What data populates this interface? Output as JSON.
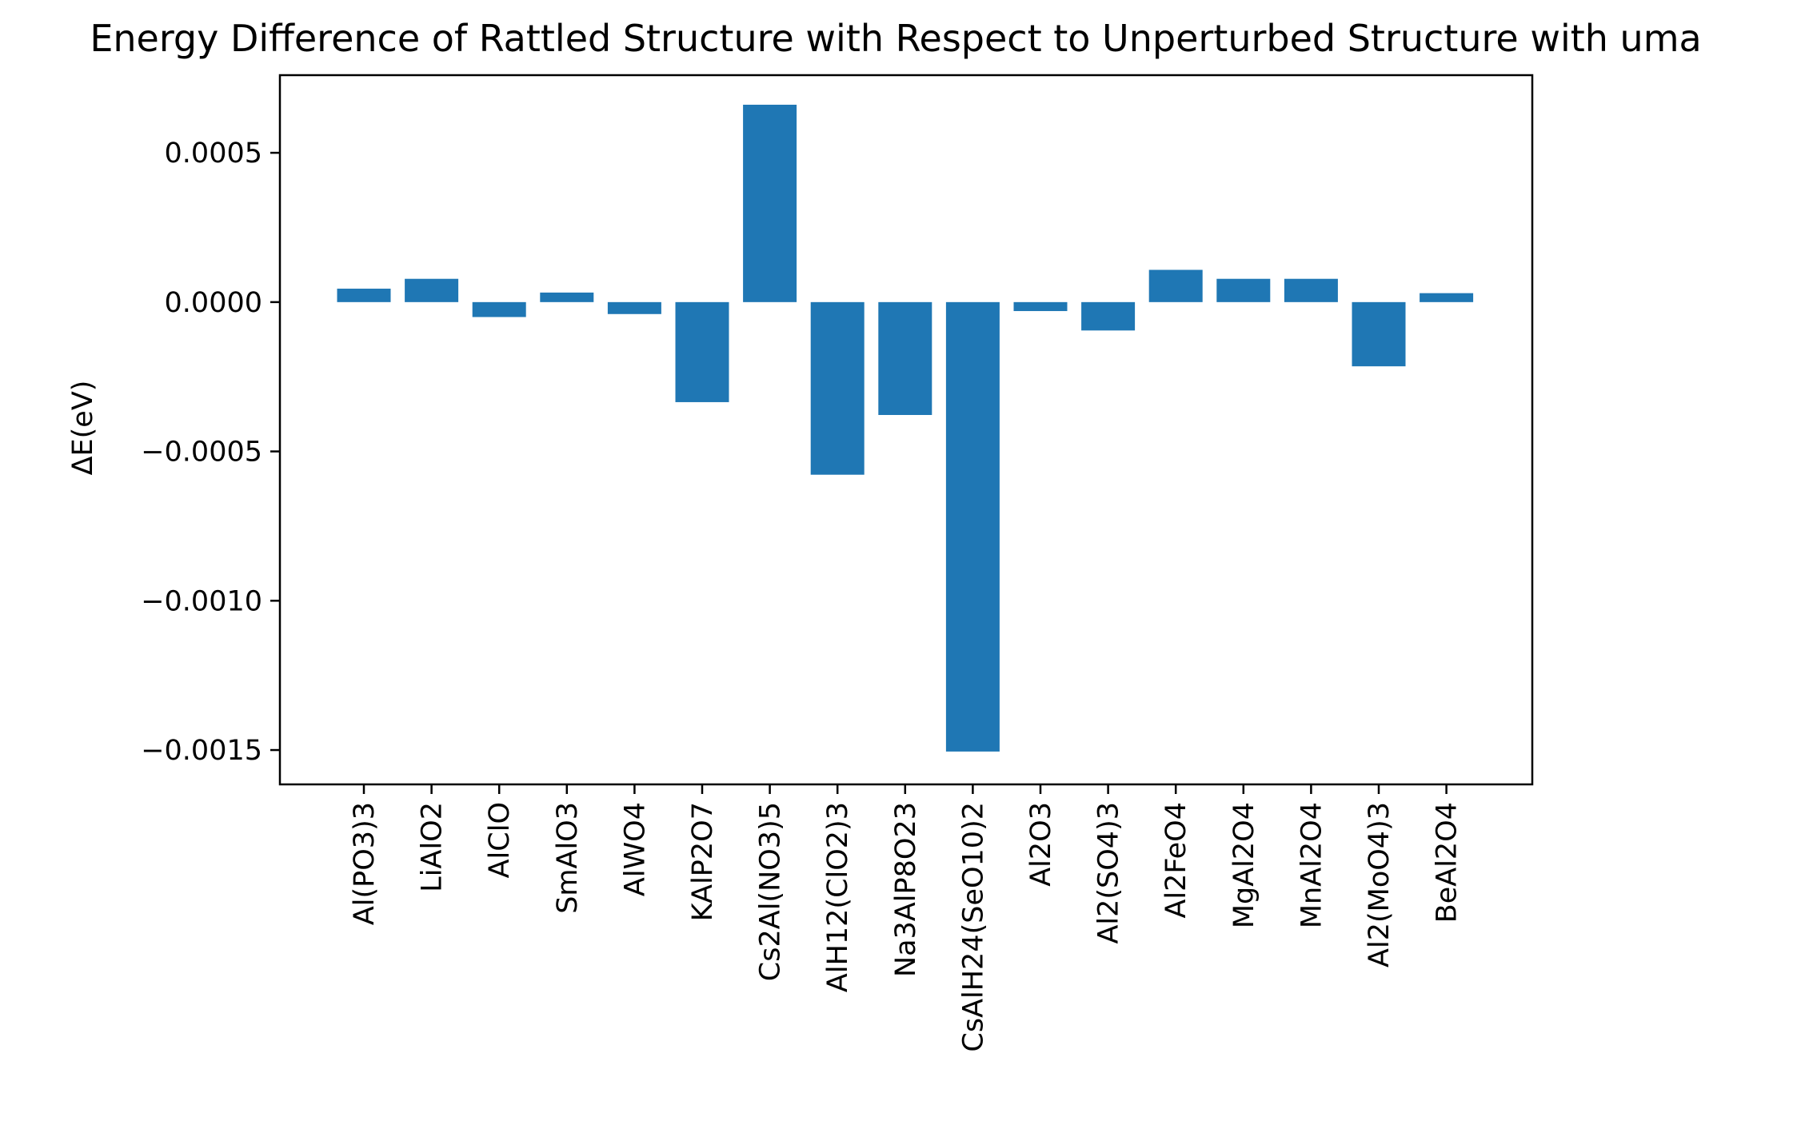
{
  "chart_data": {
    "type": "bar",
    "title": "Energy Difference of Rattled Structure with Respect to Unperturbed Structure with uma",
    "xlabel": "",
    "ylabel": "ΔE(eV)",
    "categories": [
      "Al(PO3)3",
      "LiAlO2",
      "AlClO",
      "SmAlO3",
      "AlWO4",
      "KAlP2O7",
      "Cs2Al(NO3)5",
      "AlH12(ClO2)3",
      "Na3AlP8O23",
      "CsAlH24(SeO10)2",
      "Al2O3",
      "Al2(SO4)3",
      "Al2FeO4",
      "MgAl2O4",
      "MnAl2O4",
      "Al2(MoO4)3",
      "BeAl2O4"
    ],
    "values": [
      4.5e-05,
      7.8e-05,
      -5e-05,
      3.2e-05,
      -4e-05,
      -0.000335,
      0.000661,
      -0.000578,
      -0.000378,
      -0.001505,
      -3e-05,
      -9.5e-05,
      0.000108,
      7.8e-05,
      7.8e-05,
      -0.000215,
      3e-05
    ],
    "ylim": [
      -0.001615,
      0.00076
    ],
    "yticks": [
      0.0005,
      0.0,
      -0.0005,
      -0.001,
      -0.0015
    ],
    "ytick_labels": [
      "0.0005",
      "0.0000",
      "−0.0005",
      "−0.0010",
      "−0.0015"
    ],
    "bar_color": "#1f77b4",
    "grid": false,
    "legend": "none"
  }
}
